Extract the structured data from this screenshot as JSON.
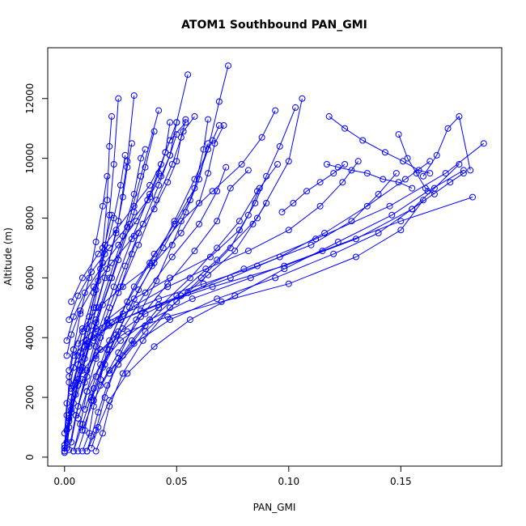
{
  "chart_data": {
    "type": "scatter",
    "title": "ATOM1 Southbound PAN_GMI",
    "xlabel": "PAN_GMI",
    "ylabel": "Altitude (m)",
    "xlim": [
      -0.0075,
      0.195
    ],
    "ylim": [
      -300,
      13700
    ],
    "x_ticks": [
      {
        "value": 0.0,
        "label": "0.00"
      },
      {
        "value": 0.05,
        "label": "0.05"
      },
      {
        "value": 0.1,
        "label": "0.10"
      },
      {
        "value": 0.15,
        "label": "0.15"
      }
    ],
    "y_ticks": [
      {
        "value": 0,
        "label": "0"
      },
      {
        "value": 2000,
        "label": "2000"
      },
      {
        "value": 4000,
        "label": "4000"
      },
      {
        "value": 6000,
        "label": "6000"
      },
      {
        "value": 8000,
        "label": "8000"
      },
      {
        "value": 10000,
        "label": "10000"
      },
      {
        "value": 12000,
        "label": "12000"
      }
    ],
    "grid": false,
    "marker": "open-circle",
    "color": "#0000ff",
    "series": [
      {
        "x": [
          0.0,
          0.001,
          0.003,
          0.006,
          0.01,
          0.014,
          0.017,
          0.019,
          0.02,
          0.021
        ],
        "y": [
          150,
          900,
          2000,
          3100,
          4300,
          5600,
          7000,
          8600,
          10400,
          11400
        ]
      },
      {
        "x": [
          0.0,
          0.002,
          0.005,
          0.009,
          0.013,
          0.017,
          0.02,
          0.022,
          0.024
        ],
        "y": [
          200,
          1300,
          2500,
          3700,
          5000,
          6500,
          8100,
          9800,
          12000
        ]
      },
      {
        "x": [
          0.001,
          0.003,
          0.007,
          0.012,
          0.018,
          0.024,
          0.028,
          0.031
        ],
        "y": [
          300,
          1500,
          2900,
          4400,
          6000,
          7900,
          9900,
          12100
        ]
      },
      {
        "x": [
          0.0,
          0.002,
          0.006,
          0.011,
          0.017,
          0.024,
          0.031,
          0.036,
          0.04
        ],
        "y": [
          200,
          1200,
          2400,
          3700,
          5100,
          6600,
          8200,
          9700,
          10900
        ]
      },
      {
        "x": [
          0.0,
          0.003,
          0.008,
          0.014,
          0.021,
          0.028,
          0.034,
          0.042
        ],
        "y": [
          300,
          1600,
          3000,
          4500,
          6000,
          7700,
          9400,
          11600
        ]
      },
      {
        "x": [
          0.002,
          0.005,
          0.01,
          0.016,
          0.024,
          0.033,
          0.041,
          0.048,
          0.053,
          0.058
        ],
        "y": [
          250,
          1400,
          2700,
          4000,
          5500,
          7100,
          8600,
          9800,
          10900,
          11400
        ]
      },
      {
        "x": [
          0.004,
          0.008,
          0.013,
          0.02,
          0.029,
          0.039,
          0.049,
          0.058,
          0.066,
          0.069
        ],
        "y": [
          200,
          1100,
          2300,
          3600,
          5000,
          6400,
          7900,
          9300,
          10600,
          11100
        ]
      },
      {
        "x": [
          0.003,
          0.006,
          0.01,
          0.015,
          0.022,
          0.03,
          0.038,
          0.045,
          0.05,
          0.055
        ],
        "y": [
          500,
          1700,
          2900,
          4200,
          5700,
          7300,
          8800,
          10200,
          11200,
          12800
        ]
      },
      {
        "x": [
          0.006,
          0.009,
          0.012,
          0.017,
          0.024,
          0.033,
          0.044,
          0.056,
          0.064,
          0.069,
          0.073
        ],
        "y": [
          200,
          900,
          1900,
          3000,
          4200,
          5600,
          7000,
          8600,
          10300,
          11900,
          13100
        ]
      },
      {
        "x": [
          0.008,
          0.011,
          0.013,
          0.016,
          0.019,
          0.024,
          0.031,
          0.04,
          0.052,
          0.066,
          0.079,
          0.088,
          0.094
        ],
        "y": [
          200,
          800,
          1700,
          2600,
          3600,
          4600,
          5700,
          6800,
          7900,
          8900,
          9800,
          10700,
          11600
        ]
      },
      {
        "x": [
          0.01,
          0.012,
          0.015,
          0.019,
          0.026,
          0.036,
          0.05,
          0.068,
          0.086,
          0.1,
          0.106
        ],
        "y": [
          200,
          700,
          1500,
          2400,
          3400,
          4400,
          5400,
          6600,
          8000,
          9900,
          12000
        ]
      },
      {
        "x": [
          0.012,
          0.015,
          0.02,
          0.028,
          0.04,
          0.056,
          0.076,
          0.098,
          0.122,
          0.146,
          0.162,
          0.178
        ],
        "y": [
          300,
          1000,
          1900,
          2800,
          3700,
          4600,
          5400,
          6300,
          7200,
          8100,
          8900,
          9600
        ]
      },
      {
        "x": [
          0.008,
          0.013,
          0.02,
          0.031,
          0.047,
          0.068,
          0.094,
          0.12,
          0.14,
          0.155,
          0.165,
          0.176
        ],
        "y": [
          900,
          1900,
          2900,
          3800,
          4600,
          5300,
          6000,
          6800,
          7500,
          8300,
          9000,
          9800
        ]
      },
      {
        "x": [
          0.006,
          0.01,
          0.016,
          0.025,
          0.038,
          0.057,
          0.083,
          0.115,
          0.15,
          0.182
        ],
        "y": [
          1300,
          2200,
          3100,
          3900,
          4600,
          5300,
          6000,
          6900,
          7900,
          8700
        ]
      },
      {
        "x": [
          0.004,
          0.008,
          0.014,
          0.023,
          0.036,
          0.055,
          0.08,
          0.112,
          0.145,
          0.17,
          0.187
        ],
        "y": [
          1800,
          2600,
          3400,
          4100,
          4800,
          5500,
          6300,
          7300,
          8400,
          9500,
          10500
        ]
      },
      {
        "x": [
          0.003,
          0.006,
          0.011,
          0.019,
          0.031,
          0.047,
          0.065,
          0.078,
          0.085,
          0.09,
          0.096,
          0.103
        ],
        "y": [
          2300,
          3100,
          3800,
          4600,
          5300,
          6000,
          6700,
          7600,
          8500,
          9400,
          10400,
          11700
        ]
      },
      {
        "x": [
          0.002,
          0.004,
          0.008,
          0.015,
          0.026,
          0.04,
          0.052,
          0.06,
          0.064,
          0.067,
          0.071
        ],
        "y": [
          2900,
          3600,
          4300,
          5000,
          5700,
          6500,
          7500,
          8500,
          9500,
          10500,
          11100
        ]
      },
      {
        "x": [
          0.001,
          0.003,
          0.007,
          0.013,
          0.021,
          0.031,
          0.04,
          0.046,
          0.05,
          0.052,
          0.054
        ],
        "y": [
          3400,
          4100,
          4900,
          5700,
          6500,
          7400,
          8300,
          9200,
          9900,
          10700,
          11300
        ]
      },
      {
        "x": [
          0.001,
          0.004,
          0.009,
          0.016,
          0.024,
          0.032,
          0.038,
          0.042,
          0.045,
          0.047
        ],
        "y": [
          3900,
          4700,
          5500,
          6300,
          7100,
          7900,
          8700,
          9500,
          10200,
          11200
        ]
      },
      {
        "x": [
          0.002,
          0.006,
          0.012,
          0.02,
          0.029,
          0.037,
          0.043,
          0.047,
          0.05
        ],
        "y": [
          4600,
          5400,
          6200,
          7000,
          7800,
          8600,
          9400,
          10100,
          10800
        ]
      },
      {
        "x": [
          0.003,
          0.008,
          0.015,
          0.023,
          0.031,
          0.038,
          0.043,
          0.047,
          0.054
        ],
        "y": [
          5200,
          6000,
          6800,
          7600,
          8400,
          9100,
          9800,
          10600,
          11200
        ]
      },
      {
        "x": [
          0.001,
          0.003,
          0.006,
          0.01,
          0.014,
          0.019,
          0.023,
          0.026,
          0.028,
          0.03
        ],
        "y": [
          500,
          1500,
          2600,
          3800,
          5000,
          6300,
          7500,
          8700,
          9700,
          10500
        ]
      },
      {
        "x": [
          0.0,
          0.001,
          0.004,
          0.008,
          0.013,
          0.018,
          0.022,
          0.025,
          0.027
        ],
        "y": [
          800,
          1800,
          3000,
          4200,
          5500,
          6800,
          8000,
          9100,
          10100
        ]
      },
      {
        "x": [
          0.002,
          0.005,
          0.009,
          0.014,
          0.02,
          0.026,
          0.031,
          0.034,
          0.036
        ],
        "y": [
          1000,
          2100,
          3300,
          4600,
          6000,
          7400,
          8800,
          10000,
          10300
        ]
      },
      {
        "x": [
          0.005,
          0.009,
          0.014,
          0.02,
          0.027,
          0.035,
          0.042,
          0.047,
          0.05
        ],
        "y": [
          1400,
          2500,
          3700,
          5000,
          6400,
          7800,
          9100,
          10100,
          11200
        ]
      },
      {
        "x": [
          0.009,
          0.014,
          0.02,
          0.028,
          0.038,
          0.049,
          0.058,
          0.062,
          0.064
        ],
        "y": [
          1600,
          2700,
          3900,
          5200,
          6500,
          7800,
          9000,
          10300,
          11300
        ]
      },
      {
        "x": [
          0.012,
          0.018,
          0.026,
          0.036,
          0.048,
          0.06,
          0.068,
          0.072
        ],
        "y": [
          2000,
          3100,
          4300,
          5500,
          6700,
          7800,
          8900,
          9700
        ]
      },
      {
        "x": [
          0.016,
          0.024,
          0.034,
          0.046,
          0.058,
          0.068,
          0.074,
          0.082
        ],
        "y": [
          2400,
          3500,
          4700,
          5800,
          6900,
          7900,
          9000,
          9600
        ]
      },
      {
        "x": [
          0.02,
          0.03,
          0.042,
          0.056,
          0.068,
          0.078,
          0.086,
          0.095
        ],
        "y": [
          2800,
          3900,
          5000,
          6000,
          7000,
          7900,
          8900,
          9800
        ]
      },
      {
        "x": [
          0.024,
          0.036,
          0.05,
          0.064,
          0.076,
          0.084,
          0.09
        ],
        "y": [
          3100,
          4200,
          5200,
          6100,
          6900,
          7800,
          8500
        ]
      },
      {
        "x": [
          0.01,
          0.014,
          0.018,
          0.024,
          0.032,
          0.041,
          0.048,
          0.054,
          0.06,
          0.064
        ],
        "y": [
          200,
          900,
          2000,
          3300,
          4600,
          5900,
          7100,
          8200,
          9300,
          10500
        ]
      },
      {
        "x": [
          0.014,
          0.017,
          0.02,
          0.026,
          0.035,
          0.047,
          0.061,
          0.074,
          0.082,
          0.087
        ],
        "y": [
          200,
          800,
          1700,
          2800,
          3900,
          5000,
          6000,
          7000,
          8100,
          9000
        ]
      },
      {
        "x": [
          0.004,
          0.007,
          0.01,
          0.014,
          0.019,
          0.025,
          0.03,
          0.033
        ],
        "y": [
          200,
          1100,
          2200,
          3300,
          4500,
          5700,
          6800,
          7500
        ]
      },
      {
        "x": [
          0.0,
          0.002,
          0.004,
          0.007,
          0.011,
          0.015,
          0.018,
          0.021
        ],
        "y": [
          300,
          1300,
          2400,
          3500,
          4700,
          5900,
          7100,
          8100
        ]
      },
      {
        "x": [
          0.0,
          0.001,
          0.002,
          0.004,
          0.007,
          0.011,
          0.014,
          0.017,
          0.019
        ],
        "y": [
          400,
          1400,
          2500,
          3600,
          4800,
          6000,
          7200,
          8400,
          9400
        ]
      },
      {
        "x": [
          0.003,
          0.008,
          0.016,
          0.028,
          0.046,
          0.07,
          0.1,
          0.13,
          0.15,
          0.16
        ],
        "y": [
          2200,
          2900,
          3600,
          4200,
          4700,
          5200,
          5800,
          6700,
          7600,
          8600
        ]
      },
      {
        "x": [
          0.002,
          0.006,
          0.013,
          0.025,
          0.042,
          0.066,
          0.098,
          0.13,
          0.155,
          0.172,
          0.178
        ],
        "y": [
          2700,
          3400,
          4000,
          4600,
          5100,
          5700,
          6400,
          7300,
          8300,
          9200,
          9500
        ]
      },
      {
        "x": [
          0.004,
          0.01,
          0.02,
          0.034,
          0.052,
          0.074,
          0.096,
          0.116,
          0.135,
          0.152,
          0.163
        ],
        "y": [
          3400,
          3900,
          4400,
          4900,
          5400,
          6000,
          6700,
          7500,
          8400,
          9300,
          9900
        ]
      },
      {
        "x": [
          0.006,
          0.014,
          0.026,
          0.042,
          0.062,
          0.086,
          0.11,
          0.128,
          0.14,
          0.148
        ],
        "y": [
          3800,
          4300,
          4800,
          5300,
          5800,
          6400,
          7100,
          7900,
          8800,
          9500
        ]
      },
      {
        "x": [
          0.013,
          0.021,
          0.032,
          0.046,
          0.063,
          0.082,
          0.1,
          0.114,
          0.124,
          0.131
        ],
        "y": [
          3900,
          4500,
          5100,
          5700,
          6300,
          6900,
          7600,
          8400,
          9200,
          9900
        ]
      },
      {
        "x": [
          0.118,
          0.125,
          0.133,
          0.143,
          0.151,
          0.158,
          0.163
        ],
        "y": [
          11400,
          11000,
          10600,
          10200,
          9900,
          9600,
          9500
        ]
      },
      {
        "x": [
          0.117,
          0.122,
          0.128,
          0.135,
          0.142,
          0.149,
          0.155
        ],
        "y": [
          9800,
          9700,
          9600,
          9500,
          9300,
          9200,
          9000
        ]
      },
      {
        "x": [
          0.16,
          0.166,
          0.171,
          0.176,
          0.181
        ],
        "y": [
          9400,
          10100,
          11000,
          11400,
          9600
        ]
      },
      {
        "x": [
          0.097,
          0.102,
          0.108,
          0.114,
          0.12,
          0.125
        ],
        "y": [
          8200,
          8500,
          8900,
          9200,
          9500,
          9800
        ]
      },
      {
        "x": [
          0.149,
          0.153,
          0.157,
          0.161,
          0.165
        ],
        "y": [
          10800,
          10000,
          9500,
          9000,
          8800
        ]
      }
    ]
  }
}
